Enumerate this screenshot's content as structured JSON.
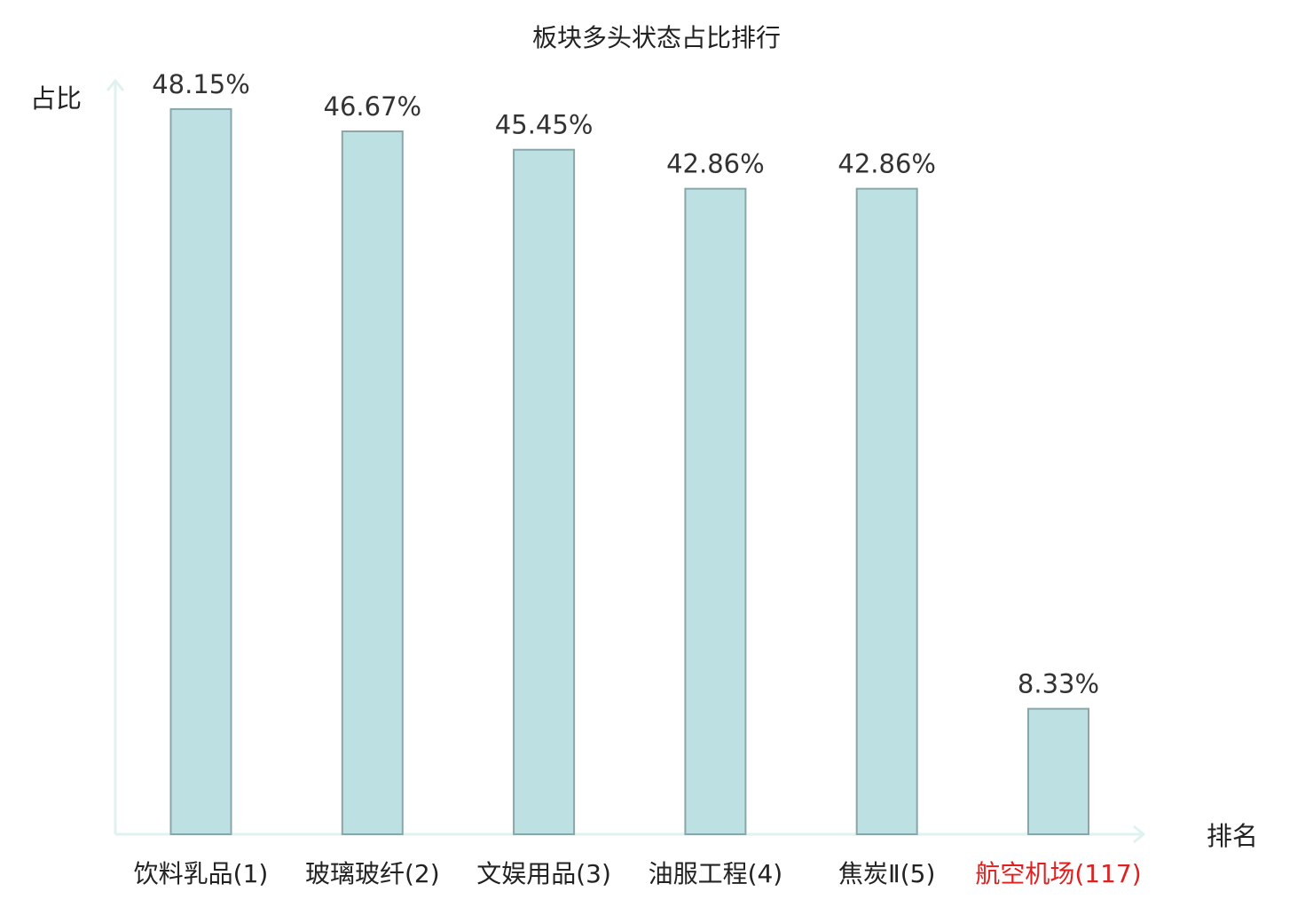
{
  "chart_data": {
    "type": "bar",
    "title": "板块多头状态占比排行",
    "ylabel": "占比",
    "xlabel": "排名",
    "ylim": [
      0,
      50
    ],
    "grid": false,
    "legend": "none",
    "bar_color": "#bde1e3",
    "bar_border_color": "#8aa6a8",
    "axis_color": "#dff2ef",
    "highlight_color": "#e02020",
    "label_color": "#222222",
    "categories": [
      "饮料乳品(1)",
      "玻璃玻纤(2)",
      "文娱用品(3)",
      "油服工程(4)",
      "焦炭Ⅱ(5)",
      "航空机场(117)"
    ],
    "values": [
      48.15,
      46.67,
      45.45,
      42.86,
      42.86,
      8.33
    ],
    "value_labels": [
      "48.15%",
      "46.67%",
      "45.45%",
      "42.86%",
      "42.86%",
      "8.33%"
    ],
    "highlight": [
      false,
      false,
      false,
      false,
      false,
      true
    ]
  }
}
